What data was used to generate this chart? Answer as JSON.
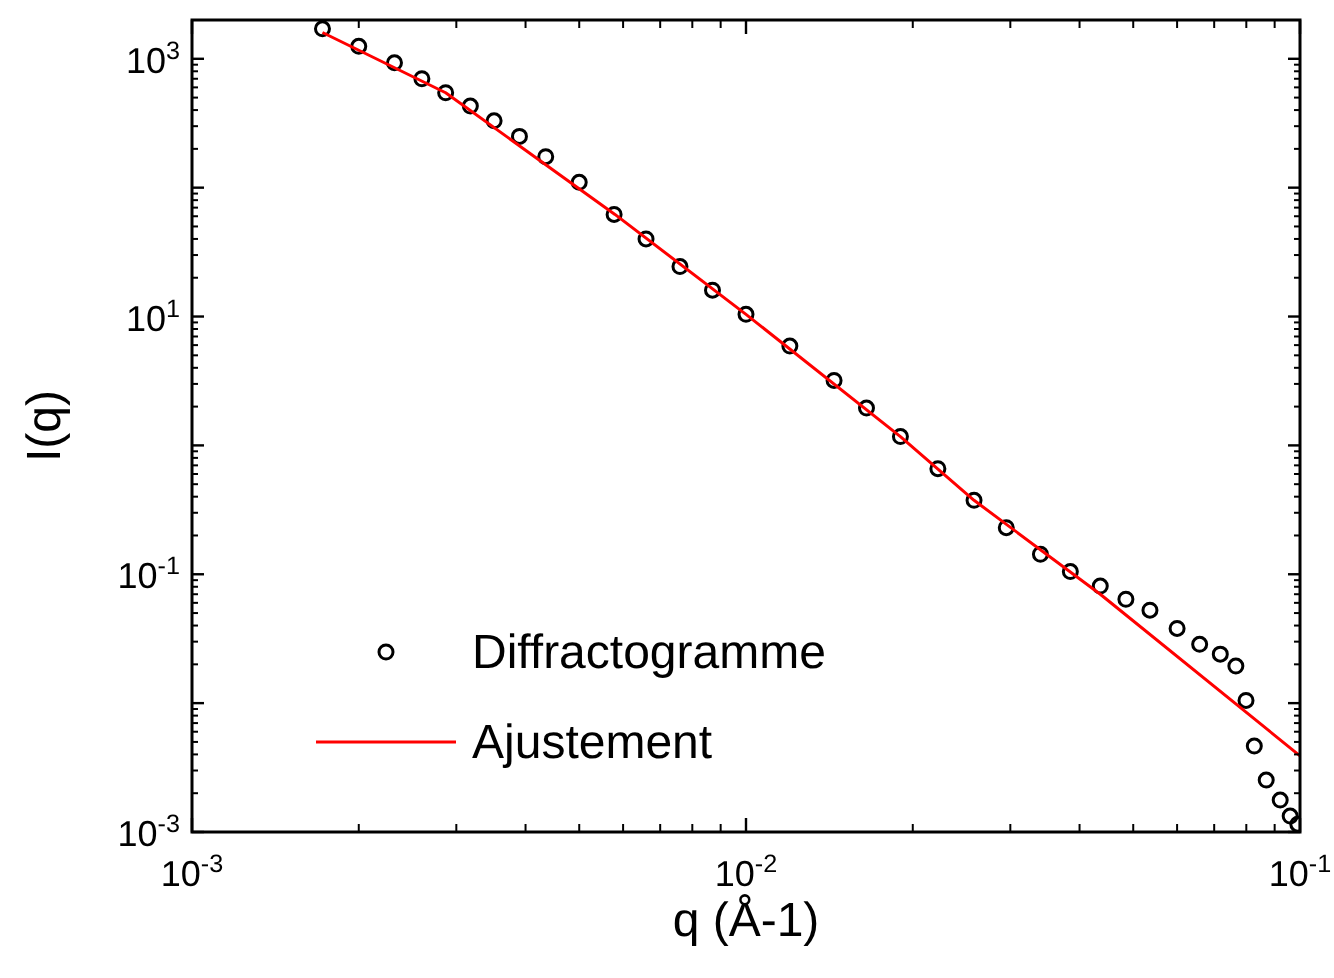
{
  "chart_data": {
    "type": "scatter",
    "xlabel": "q (Å-1)",
    "ylabel": "I(q)",
    "log": "xy",
    "legend": "bottom left",
    "xlim": [
      0.001,
      0.1
    ],
    "ylim": [
      0.001,
      2000
    ],
    "xticks": [
      {
        "value": 0.001,
        "label": "10$^{-3}$"
      },
      {
        "value": 0.01,
        "label": "10$^{-2}$"
      },
      {
        "value": 0.1,
        "label": "10$^{-1}$"
      }
    ],
    "yticks": [
      {
        "value": 0.001,
        "label": "10$^{-3}$"
      },
      {
        "value": 0.01,
        "label": null
      },
      {
        "value": 0.1,
        "label": "10$^{-1}$"
      },
      {
        "value": 1,
        "label": null
      },
      {
        "value": 10,
        "label": "10$^{1}$"
      },
      {
        "value": 100,
        "label": null
      },
      {
        "value": 1000,
        "label": "10$^{3}$"
      }
    ],
    "series": [
      {
        "name": "Diffractogramme",
        "color": "#000000",
        "marker": "circle",
        "x": [
          0.00172,
          0.002,
          0.00232,
          0.0026,
          0.00287,
          0.00318,
          0.00351,
          0.0039,
          0.00435,
          0.005,
          0.00578,
          0.0066,
          0.0076,
          0.0087,
          0.01,
          0.012,
          0.01442,
          0.0165,
          0.019,
          0.0222,
          0.0258,
          0.0295,
          0.034,
          0.0385,
          0.0436,
          0.0485,
          0.0536,
          0.06,
          0.0659,
          0.0718,
          0.0766,
          0.0799,
          0.0827,
          0.0869,
          0.0921,
          0.096,
          0.0991
        ],
        "values": [
          1710,
          1250,
          930,
          700,
          545,
          430,
          330,
          250,
          174,
          110,
          62,
          40,
          24.4,
          16,
          10.4,
          5.9,
          3.19,
          1.95,
          1.17,
          0.66,
          0.375,
          0.23,
          0.143,
          0.105,
          0.081,
          0.064,
          0.0526,
          0.038,
          0.0286,
          0.024,
          0.0194,
          0.0105,
          0.00464,
          0.00253,
          0.00177,
          0.00133,
          0.00115
        ]
      },
      {
        "name": "Ajustement",
        "type": "line",
        "color": "#ff0000",
        "line_style": "solid",
        "x": [
          0.00172,
          0.00287,
          0.0058,
          0.01,
          0.019,
          0.0258,
          0.0436,
          0.1
        ],
        "values": [
          1600,
          545,
          62,
          10.4,
          1.17,
          0.375,
          0.07,
          0.0039
        ]
      }
    ]
  }
}
